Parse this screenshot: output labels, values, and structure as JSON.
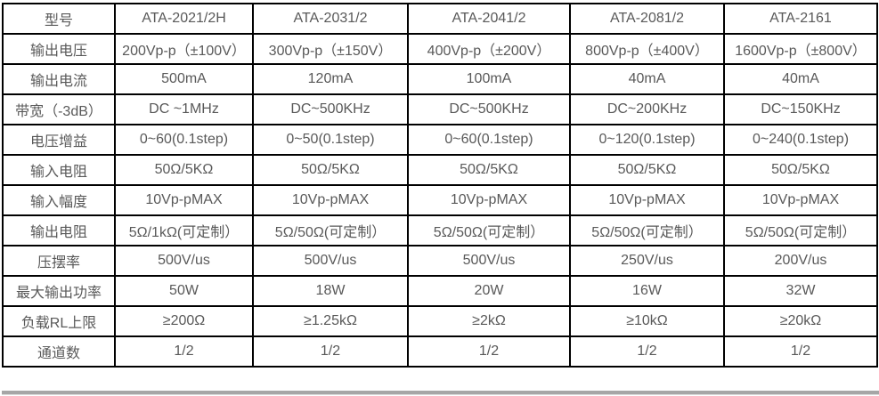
{
  "table": {
    "header": {
      "label": "型号",
      "models": [
        "ATA-2021/2H",
        "ATA-2031/2",
        "ATA-2041/2",
        "ATA-2081/2",
        "ATA-2161"
      ]
    },
    "rows": [
      {
        "label": "输出电压",
        "values": [
          "200Vp-p（±100V）",
          "300Vp-p（±150V）",
          "400Vp-p（±200V）",
          "800Vp-p（±400V）",
          "1600Vp-p（±800V）"
        ]
      },
      {
        "label": "输出电流",
        "values": [
          "500mA",
          "120mA",
          "100mA",
          "40mA",
          "40mA"
        ]
      },
      {
        "label": "带宽（-3dB）",
        "values": [
          "DC ~1MHz",
          "DC~500KHz",
          "DC~500KHz",
          "DC~200KHz",
          "DC~150KHz"
        ]
      },
      {
        "label": "电压增益",
        "values": [
          "0~60(0.1step)",
          "0~50(0.1step)",
          "0~60(0.1step)",
          "0~120(0.1step)",
          "0~240(0.1step)"
        ]
      },
      {
        "label": "输入电阻",
        "values": [
          "50Ω/5KΩ",
          "50Ω/5KΩ",
          "50Ω/5KΩ",
          "50Ω/5KΩ",
          "50Ω/5KΩ"
        ]
      },
      {
        "label": "输入幅度",
        "values": [
          "10Vp-pMAX",
          "10Vp-pMAX",
          "10Vp-pMAX",
          "10Vp-pMAX",
          "10Vp-pMAX"
        ]
      },
      {
        "label": "输出电阻",
        "values": [
          "5Ω/1kΩ(可定制）",
          "5Ω/50Ω(可定制）",
          "5Ω/50Ω(可定制）",
          "5Ω/50Ω(可定制）",
          "5Ω/50Ω(可定制）"
        ]
      },
      {
        "label": "压摆率",
        "values": [
          "500V/us",
          "500V/us",
          "500V/us",
          "250V/us",
          "200V/us"
        ]
      },
      {
        "label": "最大输出功率",
        "values": [
          "50W",
          "18W",
          "20W",
          "16W",
          "32W"
        ]
      },
      {
        "label": "负载RL上限",
        "values": [
          "≥200Ω",
          "≥1.25kΩ",
          "≥2kΩ",
          "≥10kΩ",
          "≥20kΩ"
        ]
      },
      {
        "label": "通道数",
        "values": [
          "1/2",
          "1/2",
          "1/2",
          "1/2",
          "1/2"
        ]
      }
    ]
  },
  "colors": {
    "border": "#000000",
    "text": "#595959",
    "background": "#ffffff",
    "shadow": "#a6a6a6"
  }
}
